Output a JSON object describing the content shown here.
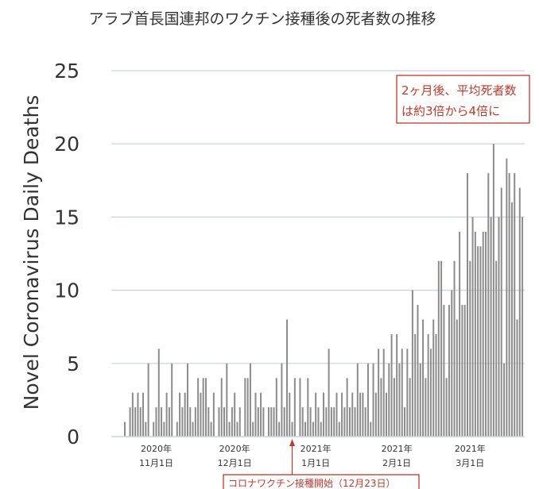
{
  "chart_data": {
    "type": "bar",
    "title": "アラブ首長国連邦のワクチン接種後の死者数の推移",
    "ylabel": "Novel Coronavirus Daily Deaths",
    "xlabel": "",
    "ylim": [
      0,
      25
    ],
    "yticks": [
      0,
      5,
      10,
      15,
      20,
      25
    ],
    "grid": true,
    "bar_color": "#8c8c8c",
    "annotation_color": "#c0392b",
    "x_start": "2020-10-20",
    "xtick_labels": [
      {
        "date": "2020-11-01",
        "line1": "2020年",
        "line2": "11月1日"
      },
      {
        "date": "2020-12-01",
        "line1": "2020年",
        "line2": "12月1日"
      },
      {
        "date": "2021-01-01",
        "line1": "2021年",
        "line2": "1月1日"
      },
      {
        "date": "2021-02-01",
        "line1": "2021年",
        "line2": "2月1日"
      },
      {
        "date": "2021-03-01",
        "line1": "2021年",
        "line2": "3月1日"
      }
    ],
    "values": [
      1,
      0,
      2,
      3,
      2,
      3,
      2,
      3,
      1,
      5,
      0,
      1,
      2,
      6,
      2,
      1,
      3,
      2,
      5,
      0,
      1,
      3,
      2,
      3,
      5,
      2,
      1,
      2,
      4,
      3,
      4,
      4,
      2,
      1,
      3,
      0,
      2,
      4,
      2,
      5,
      1,
      2,
      3,
      1,
      2,
      0,
      4,
      4,
      5,
      1,
      3,
      2,
      3,
      2,
      0,
      2,
      2,
      2,
      4,
      1,
      5,
      2,
      8,
      3,
      1,
      4,
      0,
      4,
      2,
      1,
      4,
      2,
      1,
      3,
      2,
      1,
      3,
      2,
      6,
      2,
      2,
      3,
      1,
      3,
      2,
      4,
      2,
      3,
      2,
      5,
      3,
      3,
      2,
      5,
      1,
      5,
      3,
      6,
      4,
      6,
      3,
      5,
      7,
      4,
      7,
      5,
      6,
      2,
      6,
      4,
      10,
      7,
      9,
      5,
      8,
      4,
      7,
      6,
      8,
      7,
      12,
      12,
      9,
      4,
      9,
      10,
      12,
      8,
      14,
      9,
      9,
      18,
      12,
      15,
      14,
      13,
      13,
      14,
      14,
      18,
      15,
      20,
      12,
      15,
      17,
      5,
      19,
      18,
      16,
      18,
      8,
      17,
      15
    ],
    "annotations": [
      {
        "text_lines": [
          "2ヶ月後、平均死者数",
          "は約3倍から4倍に"
        ],
        "boxed": true
      },
      {
        "text": "コロナワクチン接種開始（12月23日）",
        "date": "2020-12-23",
        "boxed": true
      }
    ]
  }
}
